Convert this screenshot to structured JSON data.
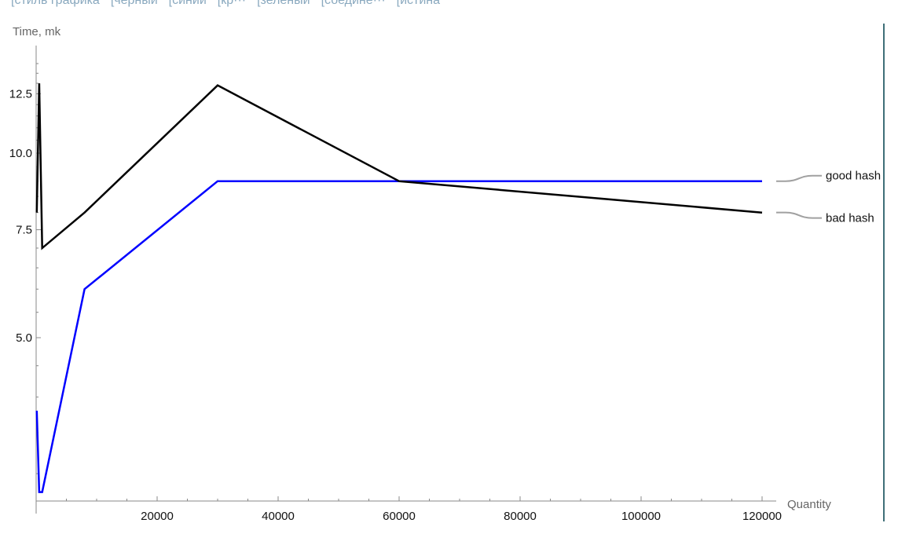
{
  "toolbar": {
    "options": [
      "[стиль графика",
      "[черный",
      "[синий",
      "[кр···",
      "[зеленый",
      "[соедине···",
      "[истина"
    ]
  },
  "colors": {
    "axis": "#888888",
    "leader": "#a0a0a0",
    "panel_bar": "#3f6f78",
    "toolbar_text": "#8aa9bf"
  },
  "chart_data": {
    "type": "line",
    "xlabel": "Quantity",
    "ylabel": "Time, mk",
    "scale": "log-y",
    "xlim": [
      0,
      120000
    ],
    "x_ticks": [
      20000,
      40000,
      60000,
      80000,
      100000,
      120000
    ],
    "x_tick_labels": [
      "20000",
      "40000",
      "60000",
      "80000",
      "100000",
      "120000"
    ],
    "y_ticks": [
      5.0,
      7.5,
      10.0,
      12.5
    ],
    "y_tick_labels": [
      "5.0",
      "7.5",
      "10.0",
      "12.5"
    ],
    "grid": false,
    "legend": "labels at right end of lines",
    "series": [
      {
        "name": "good hash",
        "color": "#0000ff",
        "x": [
          100,
          500,
          1000,
          8000,
          30000,
          60000,
          120000
        ],
        "y": [
          3.8,
          2.8,
          2.8,
          6.0,
          9.0,
          9.0,
          9.0
        ]
      },
      {
        "name": "bad hash",
        "color": "#000000",
        "x": [
          100,
          500,
          1000,
          8000,
          30000,
          60000,
          120000
        ],
        "y": [
          8.0,
          13.0,
          7.0,
          8.0,
          12.9,
          9.0,
          8.0
        ]
      }
    ]
  }
}
